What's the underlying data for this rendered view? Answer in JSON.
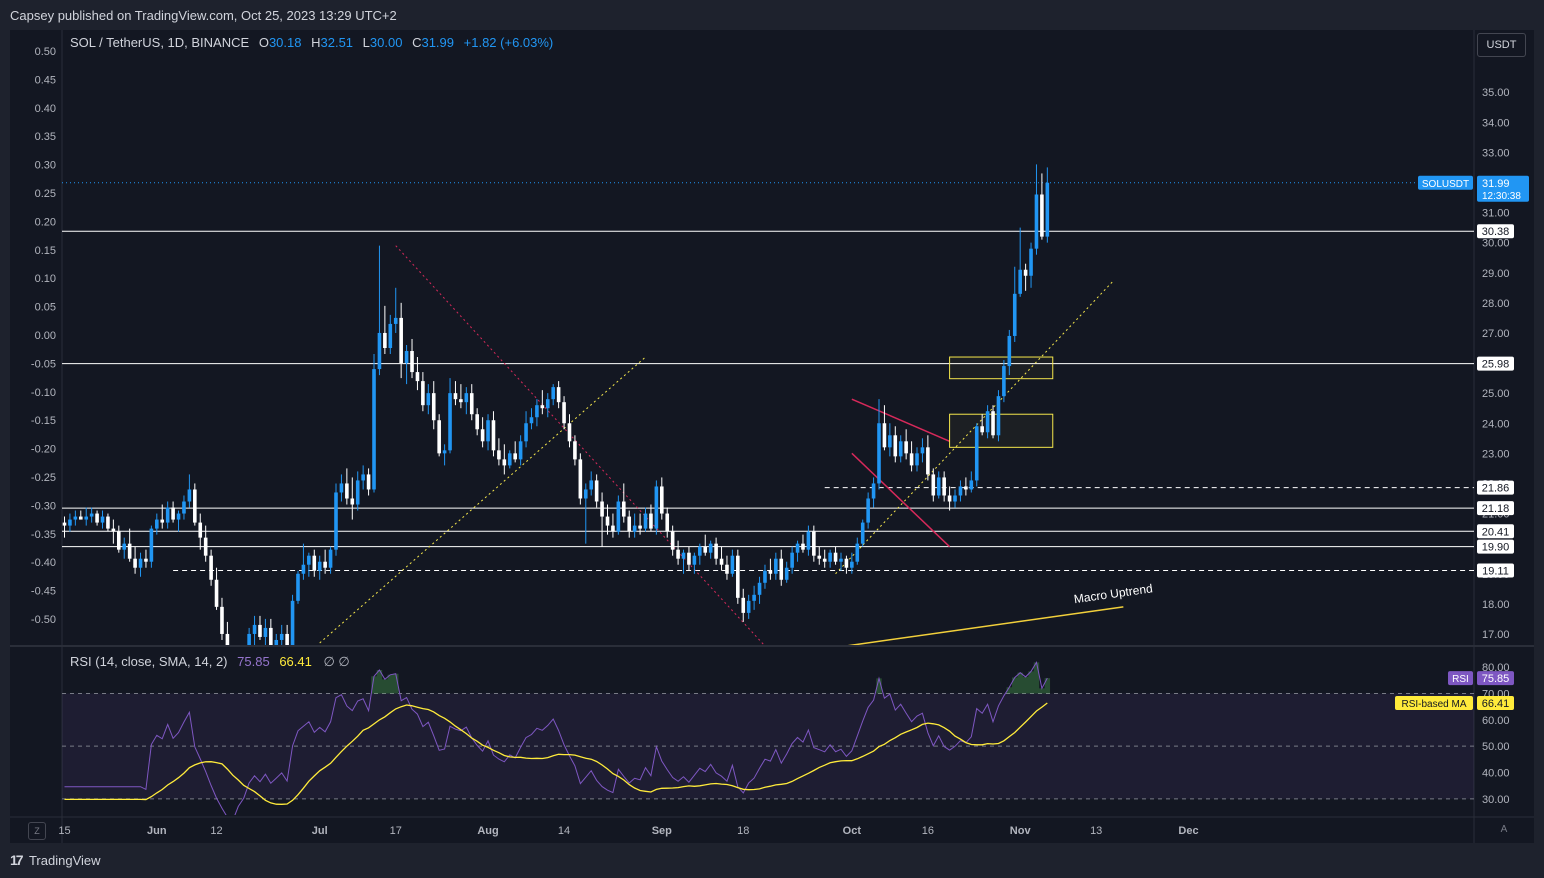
{
  "header": {
    "published_by": "Capsey published on TradingView.com, Oct 25, 2023 13:29 UTC+2"
  },
  "legend": {
    "symbol": "SOL / TetherUS, 1D, BINANCE",
    "o_label": "O",
    "o_value": "30.18",
    "h_label": "H",
    "h_value": "32.51",
    "l_label": "L",
    "l_value": "30.00",
    "c_label": "C",
    "c_value": "31.99",
    "change": "+1.82 (+6.03%)"
  },
  "rsi_legend": {
    "label": "RSI (14, close, SMA, 14, 2)",
    "rsi_value": "75.85",
    "ma_value": "66.41",
    "flags": "∅  ∅"
  },
  "currency_button": "USDT",
  "footer": {
    "z_button": "Z",
    "a_button": "A",
    "brand": "TradingView",
    "brand_logo": "17"
  },
  "colors": {
    "background": "#131722",
    "bull": "#2196f3",
    "bear": "#ffffff",
    "rsi_line": "#7e57c2",
    "rsi_ma": "#ffeb3b",
    "downtrend": "#d6295a",
    "support_trend": "#f5e74c",
    "box": "#f5e74c"
  },
  "chart_data": {
    "type": "candlestick",
    "symbol": "SOLUSDT",
    "last_price": 31.99,
    "last_price_label": "SOLUSDT",
    "countdown": "12:30:38",
    "price_axis": {
      "range": [
        16.5,
        36.0
      ],
      "ticks": [
        17,
        18,
        19,
        20,
        21,
        22,
        23,
        24,
        25,
        26,
        27,
        28,
        29,
        30,
        31,
        32,
        33,
        34,
        35
      ],
      "labels": [
        "17.00",
        "18.00",
        "19.00",
        "20.00",
        "21.00",
        "22.00",
        "23.00",
        "24.00",
        "25.00",
        "26.00",
        "27.00",
        "28.00",
        "29.00",
        "30.00",
        "31.00",
        "32.00",
        "33.00",
        "34.00",
        "35.00"
      ]
    },
    "left_axis": {
      "ticks": [
        0.5,
        0.45,
        0.4,
        0.35,
        0.3,
        0.25,
        0.2,
        0.15,
        0.1,
        0.05,
        0.0,
        -0.05,
        -0.1,
        -0.15,
        -0.2,
        -0.25,
        -0.3,
        -0.35,
        -0.4,
        -0.45,
        -0.5
      ],
      "labels": [
        "0.50",
        "0.45",
        "0.40",
        "0.35",
        "0.30",
        "0.25",
        "0.20",
        "0.15",
        "0.10",
        "0.05",
        "0.00",
        "-0.05",
        "-0.10",
        "-0.15",
        "-0.20",
        "-0.25",
        "-0.30",
        "-0.35",
        "-0.40",
        "-0.45",
        "-0.50"
      ]
    },
    "time_axis": {
      "labels": [
        "15",
        "Jun",
        "12",
        "Jul",
        "17",
        "Aug",
        "14",
        "Sep",
        "18",
        "Oct",
        "16",
        "Nov",
        "13",
        "Dec"
      ],
      "day_index": [
        0,
        17,
        28,
        47,
        61,
        78,
        92,
        110,
        125,
        145,
        159,
        176,
        190,
        207
      ]
    },
    "levels": [
      {
        "price": 30.38,
        "label": "30.38",
        "style": "solid"
      },
      {
        "price": 25.98,
        "label": "25.98",
        "style": "solid"
      },
      {
        "price": 21.86,
        "label": "21.86",
        "style": "dashed"
      },
      {
        "price": 21.18,
        "label": "21.18",
        "style": "solid"
      },
      {
        "price": 20.41,
        "label": "20.41",
        "style": "solid"
      },
      {
        "price": 19.9,
        "label": "19.90",
        "style": "solid"
      },
      {
        "price": 19.11,
        "label": "19.11",
        "style": "dashed"
      }
    ],
    "annotations": [
      {
        "type": "text",
        "text": "Macro Uptrend"
      }
    ],
    "trendlines": {
      "downtrend": [
        [
          61,
          29.9
        ],
        [
          129,
          16.6
        ]
      ],
      "support_jul": [
        [
          47,
          16.7
        ],
        [
          107,
          26.2
        ]
      ],
      "support_oct": [
        [
          142,
          19.0
        ],
        [
          193,
          28.7
        ]
      ],
      "macro_uptrend": [
        [
          140,
          16.5
        ],
        [
          195,
          17.9
        ]
      ],
      "flag_top": [
        [
          145,
          24.8
        ],
        [
          163,
          23.4
        ]
      ],
      "flag_bottom": [
        [
          145,
          23.0
        ],
        [
          163,
          19.9
        ]
      ]
    },
    "zones": [
      {
        "from_day": 163,
        "to_day": 182,
        "low": 25.48,
        "high": 26.2
      },
      {
        "from_day": 163,
        "to_day": 182,
        "low": 23.2,
        "high": 24.3
      }
    ],
    "ohlc": [
      [
        20.7,
        20.9,
        20.2,
        20.6
      ],
      [
        20.6,
        21.0,
        20.4,
        20.8
      ],
      [
        20.8,
        21.1,
        20.6,
        20.9
      ],
      [
        20.9,
        21.1,
        20.8,
        20.8
      ],
      [
        20.8,
        21.2,
        20.6,
        20.9
      ],
      [
        20.9,
        21.2,
        20.7,
        21.0
      ],
      [
        21.0,
        21.1,
        20.6,
        20.7
      ],
      [
        20.7,
        21.1,
        20.5,
        20.9
      ],
      [
        20.9,
        21.0,
        20.4,
        20.5
      ],
      [
        20.5,
        20.8,
        20.0,
        20.4
      ],
      [
        20.4,
        20.6,
        19.7,
        19.8
      ],
      [
        19.8,
        20.2,
        19.5,
        20.0
      ],
      [
        20.0,
        20.5,
        19.4,
        19.5
      ],
      [
        19.5,
        19.9,
        19.0,
        19.2
      ],
      [
        19.2,
        19.7,
        18.9,
        19.5
      ],
      [
        19.5,
        19.8,
        19.2,
        19.4
      ],
      [
        19.4,
        20.6,
        19.2,
        20.5
      ],
      [
        20.5,
        21.0,
        20.3,
        20.8
      ],
      [
        20.8,
        21.3,
        20.5,
        20.7
      ],
      [
        20.7,
        21.4,
        20.5,
        21.2
      ],
      [
        21.2,
        21.4,
        20.7,
        20.8
      ],
      [
        20.8,
        21.1,
        20.4,
        21.0
      ],
      [
        21.0,
        21.6,
        20.8,
        21.4
      ],
      [
        21.4,
        22.3,
        21.2,
        21.8
      ],
      [
        21.8,
        22.0,
        20.6,
        20.7
      ],
      [
        20.7,
        21.0,
        19.8,
        20.2
      ],
      [
        20.2,
        20.6,
        19.4,
        19.6
      ],
      [
        19.6,
        19.8,
        18.6,
        18.8
      ],
      [
        18.8,
        19.2,
        17.8,
        17.9
      ],
      [
        17.9,
        18.2,
        16.8,
        17.0
      ],
      [
        17.0,
        17.4,
        15.8,
        16.0
      ],
      [
        16.0,
        16.5,
        15.2,
        15.6
      ],
      [
        15.6,
        16.3,
        15.4,
        16.1
      ],
      [
        16.1,
        16.6,
        15.9,
        16.4
      ],
      [
        16.4,
        17.2,
        16.2,
        17.0
      ],
      [
        17.0,
        17.6,
        16.6,
        17.3
      ],
      [
        17.3,
        17.6,
        16.8,
        16.9
      ],
      [
        16.9,
        17.5,
        16.6,
        17.2
      ],
      [
        17.2,
        17.5,
        16.5,
        16.6
      ],
      [
        16.6,
        17.0,
        16.2,
        16.8
      ],
      [
        16.8,
        17.3,
        16.4,
        17.0
      ],
      [
        17.0,
        17.3,
        16.3,
        16.5
      ],
      [
        16.5,
        18.3,
        16.4,
        18.1
      ],
      [
        18.1,
        19.1,
        18.0,
        19.0
      ],
      [
        19.0,
        20.0,
        18.8,
        19.3
      ],
      [
        19.3,
        19.7,
        18.9,
        19.6
      ],
      [
        19.6,
        19.8,
        18.9,
        19.1
      ],
      [
        19.1,
        19.6,
        18.8,
        19.4
      ],
      [
        19.4,
        19.8,
        19.0,
        19.2
      ],
      [
        19.2,
        19.9,
        19.0,
        19.8
      ],
      [
        19.8,
        22.0,
        19.6,
        21.7
      ],
      [
        21.7,
        22.3,
        21.4,
        22.0
      ],
      [
        22.0,
        22.5,
        21.3,
        21.5
      ],
      [
        21.5,
        22.2,
        20.8,
        21.3
      ],
      [
        21.3,
        22.4,
        21.1,
        22.1
      ],
      [
        22.1,
        22.6,
        21.8,
        22.3
      ],
      [
        22.3,
        22.5,
        21.6,
        21.8
      ],
      [
        21.8,
        26.3,
        21.7,
        25.8
      ],
      [
        25.8,
        29.9,
        25.6,
        27.0
      ],
      [
        27.0,
        27.9,
        26.3,
        26.5
      ],
      [
        26.5,
        27.6,
        26.3,
        27.3
      ],
      [
        27.3,
        28.5,
        27.0,
        27.5
      ],
      [
        27.5,
        28.0,
        25.5,
        26.0
      ],
      [
        26.0,
        26.6,
        25.3,
        26.4
      ],
      [
        26.4,
        26.8,
        25.5,
        25.7
      ],
      [
        25.7,
        26.2,
        25.1,
        25.4
      ],
      [
        25.4,
        25.7,
        24.4,
        24.6
      ],
      [
        24.6,
        25.3,
        24.3,
        25.0
      ],
      [
        25.0,
        25.4,
        23.8,
        24.1
      ],
      [
        24.1,
        24.3,
        22.9,
        23.0
      ],
      [
        23.0,
        23.3,
        22.6,
        23.1
      ],
      [
        23.1,
        25.5,
        23.0,
        25.0
      ],
      [
        25.0,
        25.4,
        24.6,
        24.8
      ],
      [
        24.8,
        25.3,
        24.5,
        24.7
      ],
      [
        24.7,
        25.2,
        24.3,
        25.0
      ],
      [
        25.0,
        25.3,
        24.1,
        24.3
      ],
      [
        24.3,
        24.5,
        23.6,
        23.8
      ],
      [
        23.8,
        24.2,
        23.2,
        23.4
      ],
      [
        23.4,
        24.3,
        23.1,
        24.1
      ],
      [
        24.1,
        24.4,
        22.9,
        23.1
      ],
      [
        23.1,
        23.5,
        22.6,
        22.8
      ],
      [
        22.8,
        23.3,
        22.3,
        22.6
      ],
      [
        22.6,
        23.1,
        22.5,
        23.0
      ],
      [
        23.0,
        23.4,
        22.7,
        22.8
      ],
      [
        22.8,
        23.6,
        22.6,
        23.4
      ],
      [
        23.4,
        24.4,
        23.2,
        24.0
      ],
      [
        24.0,
        24.5,
        23.8,
        24.2
      ],
      [
        24.2,
        24.8,
        23.9,
        24.6
      ],
      [
        24.6,
        25.1,
        24.3,
        24.5
      ],
      [
        24.5,
        25.0,
        24.2,
        24.8
      ],
      [
        24.8,
        25.3,
        24.6,
        25.2
      ],
      [
        25.2,
        25.4,
        24.5,
        24.7
      ],
      [
        24.7,
        24.9,
        23.8,
        24.0
      ],
      [
        24.0,
        24.3,
        23.2,
        23.4
      ],
      [
        23.4,
        23.6,
        22.6,
        22.8
      ],
      [
        22.8,
        23.0,
        21.3,
        21.5
      ],
      [
        21.5,
        22.0,
        20.0,
        21.8
      ],
      [
        21.8,
        22.4,
        21.6,
        22.1
      ],
      [
        22.1,
        22.3,
        21.2,
        21.4
      ],
      [
        21.4,
        21.7,
        19.9,
        20.9
      ],
      [
        20.9,
        21.3,
        20.3,
        20.6
      ],
      [
        20.6,
        21.0,
        20.2,
        20.4
      ],
      [
        20.4,
        21.6,
        20.3,
        21.4
      ],
      [
        21.4,
        22.0,
        20.7,
        20.9
      ],
      [
        20.9,
        21.1,
        20.2,
        20.4
      ],
      [
        20.4,
        21.0,
        20.2,
        20.6
      ],
      [
        20.6,
        21.0,
        20.3,
        20.5
      ],
      [
        20.5,
        21.2,
        20.4,
        21.0
      ],
      [
        21.0,
        21.3,
        20.4,
        20.5
      ],
      [
        20.5,
        22.1,
        20.3,
        21.9
      ],
      [
        21.9,
        22.2,
        20.8,
        21.0
      ],
      [
        21.0,
        21.2,
        20.2,
        20.4
      ],
      [
        20.4,
        20.6,
        19.6,
        19.8
      ],
      [
        19.8,
        20.1,
        19.3,
        19.5
      ],
      [
        19.5,
        19.8,
        19.0,
        19.7
      ],
      [
        19.7,
        19.9,
        19.1,
        19.3
      ],
      [
        19.3,
        19.7,
        19.0,
        19.6
      ],
      [
        19.6,
        20.0,
        19.3,
        19.9
      ],
      [
        19.9,
        20.3,
        19.6,
        19.7
      ],
      [
        19.7,
        20.1,
        19.5,
        20.0
      ],
      [
        20.0,
        20.2,
        19.3,
        19.5
      ],
      [
        19.5,
        19.9,
        19.1,
        19.3
      ],
      [
        19.3,
        19.6,
        18.8,
        19.0
      ],
      [
        19.0,
        19.8,
        18.9,
        19.6
      ],
      [
        19.6,
        19.8,
        18.0,
        18.2
      ],
      [
        18.2,
        18.5,
        17.4,
        17.7
      ],
      [
        17.7,
        18.3,
        17.5,
        18.1
      ],
      [
        18.1,
        18.6,
        17.8,
        18.3
      ],
      [
        18.3,
        18.9,
        18.0,
        18.7
      ],
      [
        18.7,
        19.3,
        18.5,
        19.1
      ],
      [
        19.1,
        19.5,
        18.8,
        19.0
      ],
      [
        19.0,
        19.7,
        18.8,
        19.5
      ],
      [
        19.5,
        19.8,
        18.6,
        18.8
      ],
      [
        18.8,
        19.4,
        18.7,
        19.2
      ],
      [
        19.2,
        19.9,
        19.0,
        19.7
      ],
      [
        19.7,
        20.1,
        19.4,
        20.0
      ],
      [
        20.0,
        20.3,
        19.7,
        19.8
      ],
      [
        19.8,
        20.6,
        19.6,
        20.4
      ],
      [
        20.4,
        20.6,
        19.4,
        19.6
      ],
      [
        19.6,
        19.9,
        19.3,
        19.5
      ],
      [
        19.5,
        19.8,
        19.2,
        19.4
      ],
      [
        19.4,
        19.8,
        19.2,
        19.7
      ],
      [
        19.7,
        19.9,
        19.3,
        19.4
      ],
      [
        19.4,
        19.7,
        19.1,
        19.5
      ],
      [
        19.5,
        19.6,
        19.0,
        19.2
      ],
      [
        19.2,
        19.7,
        19.0,
        19.4
      ],
      [
        19.4,
        20.2,
        19.3,
        20.0
      ],
      [
        20.0,
        20.8,
        19.9,
        20.7
      ],
      [
        20.7,
        21.7,
        20.5,
        21.5
      ],
      [
        21.5,
        22.2,
        21.2,
        22.0
      ],
      [
        22.0,
        24.8,
        21.8,
        24.0
      ],
      [
        24.0,
        24.6,
        23.1,
        23.2
      ],
      [
        23.2,
        24.0,
        22.9,
        23.6
      ],
      [
        23.6,
        23.9,
        22.7,
        22.9
      ],
      [
        22.9,
        23.6,
        22.7,
        23.4
      ],
      [
        23.4,
        23.8,
        22.8,
        23.0
      ],
      [
        23.0,
        23.4,
        22.4,
        22.6
      ],
      [
        22.6,
        23.2,
        22.4,
        23.0
      ],
      [
        23.0,
        23.5,
        22.7,
        23.2
      ],
      [
        23.2,
        23.6,
        22.1,
        22.3
      ],
      [
        22.3,
        22.5,
        21.4,
        21.6
      ],
      [
        21.6,
        22.4,
        21.5,
        22.2
      ],
      [
        22.2,
        22.4,
        21.4,
        21.6
      ],
      [
        21.6,
        21.9,
        21.1,
        21.4
      ],
      [
        21.4,
        21.8,
        21.2,
        21.6
      ],
      [
        21.6,
        22.1,
        21.4,
        21.9
      ],
      [
        21.9,
        22.2,
        21.6,
        21.8
      ],
      [
        21.8,
        22.4,
        21.7,
        22.1
      ],
      [
        22.1,
        24.0,
        21.9,
        23.9
      ],
      [
        23.9,
        24.3,
        23.6,
        23.7
      ],
      [
        23.7,
        24.6,
        23.5,
        24.4
      ],
      [
        24.4,
        24.6,
        23.5,
        23.6
      ],
      [
        23.6,
        25.1,
        23.4,
        24.9
      ],
      [
        24.9,
        26.1,
        24.7,
        25.9
      ],
      [
        25.9,
        27.1,
        25.6,
        26.9
      ],
      [
        26.9,
        29.2,
        26.7,
        28.3
      ],
      [
        28.3,
        30.5,
        28.2,
        29.1
      ],
      [
        29.1,
        29.3,
        28.4,
        28.9
      ],
      [
        28.9,
        30.0,
        28.5,
        29.8
      ],
      [
        29.8,
        32.6,
        29.6,
        31.6
      ],
      [
        31.6,
        32.3,
        30.1,
        30.2
      ],
      [
        30.2,
        32.5,
        30.0,
        31.99
      ]
    ],
    "rsi": {
      "range": [
        25,
        85
      ],
      "ticks": [
        30,
        40,
        50,
        60,
        70,
        80
      ],
      "labels": [
        "30.00",
        "40.00",
        "50.00",
        "60.00",
        "70.00",
        "80.00"
      ],
      "bands": {
        "upper": 70,
        "middle": 50,
        "lower": 30
      },
      "last_rsi": 75.85,
      "last_ma": 66.41,
      "rsi_label": "RSI",
      "rsi_value_label": "75.85",
      "ma_label": "RSI-based MA",
      "ma_value_label": "66.41"
    }
  }
}
